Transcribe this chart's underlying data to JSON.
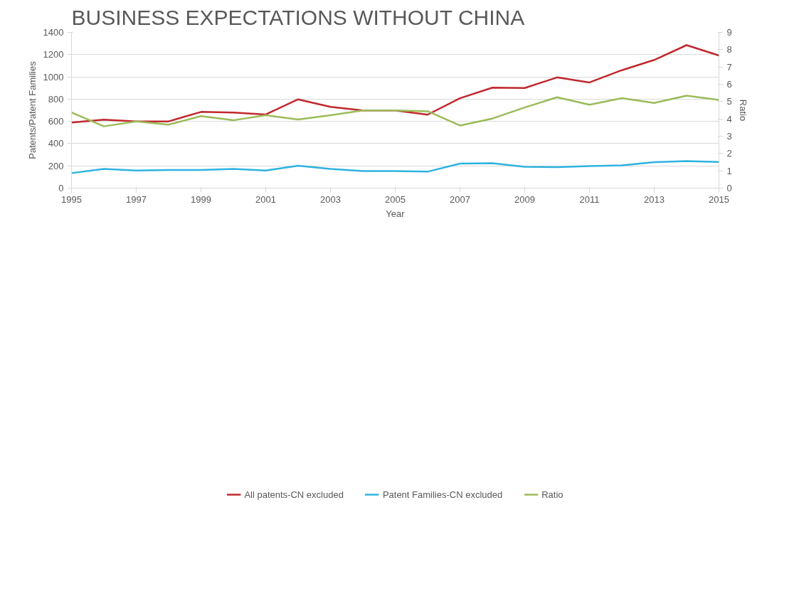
{
  "chart_data": {
    "type": "line",
    "title": "BUSINESS EXPECTATIONS WITHOUT CHINA",
    "xlabel": "Year",
    "ylabel": "Patents/Patent Families",
    "y2label": "Ratio",
    "x": [
      1995,
      1996,
      1997,
      1998,
      1999,
      2000,
      2001,
      2002,
      2003,
      2004,
      2005,
      2006,
      2007,
      2008,
      2009,
      2010,
      2011,
      2012,
      2013,
      2014,
      2015
    ],
    "series": [
      {
        "name": "All patents-CN excluded",
        "color": "#c0282d",
        "values": [
          590,
          615,
          600,
          600,
          685,
          680,
          662,
          798,
          730,
          698,
          698,
          660,
          808,
          903,
          900,
          995,
          950,
          1060,
          1152,
          1285,
          1192
        ]
      },
      {
        "name": "Patent Families-CN excluded",
        "color": "#2eb3e0",
        "values": [
          135,
          173,
          158,
          163,
          163,
          173,
          158,
          202,
          173,
          153,
          153,
          148,
          220,
          224,
          192,
          188,
          198,
          205,
          233,
          243,
          235
        ]
      },
      {
        "name": "Ratio",
        "color": "#9bbb59",
        "axis": "y2",
        "values": [
          4.37,
          3.57,
          3.85,
          3.67,
          4.16,
          3.92,
          4.21,
          3.97,
          4.21,
          4.49,
          4.49,
          4.44,
          3.62,
          4.02,
          4.66,
          5.25,
          4.82,
          5.2,
          4.92,
          5.34,
          5.1
        ]
      }
    ],
    "xlim": [
      1995,
      2015
    ],
    "xticks": [
      1995,
      1997,
      1999,
      2001,
      2003,
      2005,
      2007,
      2009,
      2011,
      2013,
      2015
    ],
    "ylim": [
      0,
      1400
    ],
    "yticks": [
      0,
      200,
      400,
      600,
      800,
      1000,
      1200,
      1400
    ],
    "y2lim": [
      0,
      9
    ],
    "y2ticks": [
      0,
      1,
      2,
      3,
      4,
      5,
      6,
      7,
      8,
      9
    ],
    "grid": "y",
    "legend": "bottom",
    "marker": "none",
    "line_style": "solid"
  }
}
